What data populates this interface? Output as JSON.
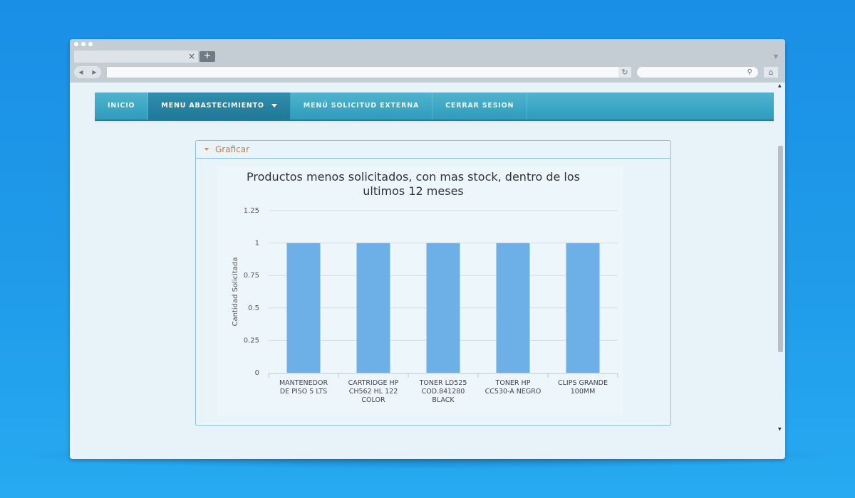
{
  "browser": {
    "tab_close": "×",
    "new_tab": "+",
    "back_icon": "◀",
    "forward_icon": "▶",
    "reload_icon": "↻",
    "search_icon": "⚲",
    "home_icon": "⌂"
  },
  "menu": {
    "items": [
      {
        "label": "INICIO"
      },
      {
        "label": "MENU ABASTECIMIENTO",
        "active": true
      },
      {
        "label": "MENÚ SOLICITUD EXTERNA"
      },
      {
        "label": "CERRAR SESION"
      }
    ]
  },
  "panel": {
    "title": "Graficar"
  },
  "chart_data": {
    "type": "bar",
    "title_lines": [
      "Productos menos solicitados, con mas stock, dentro de los",
      "ultimos 12 meses"
    ],
    "ylabel": "Cantidad Solicitada",
    "xlabel": "",
    "categories": [
      [
        "MANTENEDOR",
        "DE PISO 5 LTS"
      ],
      [
        "CARTRIDGE HP",
        "CH562 HL 122",
        "COLOR"
      ],
      [
        "TONER LD525",
        "COD.841280",
        "BLACK"
      ],
      [
        "TONER HP",
        "CC530-A NEGRO"
      ],
      [
        "CLIPS GRANDE",
        "100MM"
      ]
    ],
    "values": [
      1,
      1,
      1,
      1,
      1
    ],
    "yticks": [
      "0",
      "0.25",
      "0.5",
      "0.75",
      "1",
      "1.25"
    ],
    "ylim": [
      0,
      1.25
    ],
    "grid": true,
    "bar_color": "#6db0e8"
  }
}
